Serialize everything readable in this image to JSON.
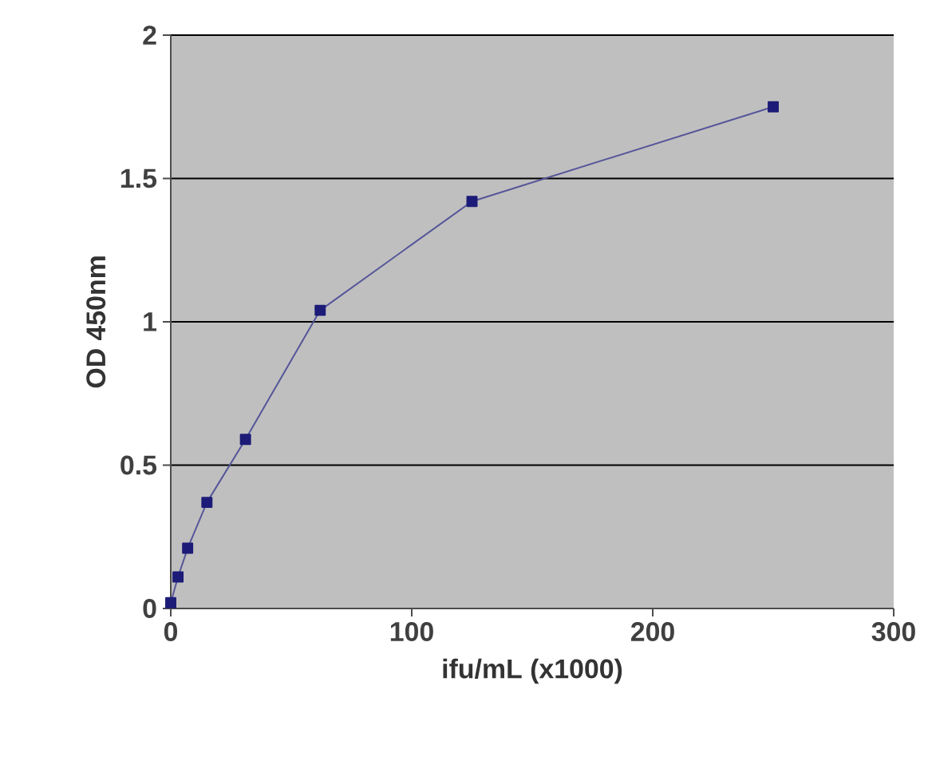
{
  "chart_data": {
    "type": "line",
    "xlabel": "ifu/mL (x1000)",
    "ylabel": "OD 450nm",
    "x": [
      0,
      3,
      7,
      15,
      31,
      62,
      125,
      250
    ],
    "series": [
      {
        "color": "#1c1c78",
        "values": [
          0.02,
          0.11,
          0.21,
          0.37,
          0.59,
          1.04,
          1.42,
          1.75
        ]
      }
    ],
    "xlim": [
      0,
      300
    ],
    "ylim": [
      0,
      2
    ],
    "xticks": [
      0,
      100,
      200,
      300
    ],
    "yticks": [
      0,
      0.5,
      1,
      1.5,
      2
    ],
    "grid": "y",
    "marker": "square",
    "line_style": "solid"
  }
}
